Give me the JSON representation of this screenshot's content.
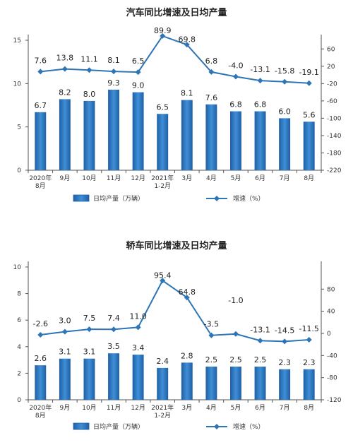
{
  "chart_data": [
    {
      "type": "bar",
      "title": "汽车同比增速及日均产量",
      "categories": [
        "2020年\n8月",
        "9月",
        "10月",
        "11月",
        "12月",
        "2021年\n1-2月",
        "3月",
        "4月",
        "5月",
        "6月",
        "7月",
        "8月"
      ],
      "ylim": [
        0,
        15
      ],
      "y_ticks": [
        0,
        5,
        10,
        15
      ],
      "y2lim": [
        -220,
        80
      ],
      "y2_ticks": [
        60,
        20,
        -20,
        -60,
        -100,
        -140,
        -180,
        -220
      ],
      "series": [
        {
          "name": "日均产量（万辆）",
          "type": "bar",
          "axis": "left",
          "color": "#2e75b6",
          "values": [
            6.7,
            8.2,
            8.0,
            9.3,
            9.0,
            6.5,
            8.1,
            7.6,
            6.8,
            6.8,
            6.0,
            5.6
          ],
          "labels": [
            "6.7",
            "8.2",
            "8.0",
            "9.3",
            "9.0",
            "6.5",
            "8.1",
            "7.6",
            "6.8",
            "6.8",
            "6.0",
            "5.6"
          ]
        },
        {
          "name": "增速（%）",
          "type": "line",
          "axis": "right",
          "color": "#2e75b6",
          "values": [
            7.6,
            13.8,
            11.1,
            8.1,
            6.5,
            89.9,
            69.8,
            6.8,
            -4.0,
            -13.1,
            -15.8,
            -19.1
          ],
          "labels": [
            "7.6",
            "13.8",
            "11.1",
            "8.1",
            "6.5",
            "89.9",
            "69.8",
            "6.8",
            "-4.0",
            "-13.1",
            "-15.8",
            "-19.1"
          ]
        }
      ],
      "legend_position": "bottom",
      "grid": false
    },
    {
      "type": "bar",
      "title": "轿车同比增速及日均产量",
      "categories": [
        "2020年\n8月",
        "9月",
        "10月",
        "11月",
        "12月",
        "2021年\n1-2月",
        "3月",
        "4月",
        "5月",
        "6月",
        "7月",
        "8月"
      ],
      "ylim": [
        0,
        10
      ],
      "y_ticks": [
        0,
        2,
        4,
        6,
        8,
        10
      ],
      "y2lim": [
        -120,
        120
      ],
      "y2_ticks": [
        80,
        40,
        0,
        -40,
        -80,
        -120
      ],
      "series": [
        {
          "name": "日均产量（万辆）",
          "type": "bar",
          "axis": "left",
          "color": "#2e75b6",
          "values": [
            2.6,
            3.1,
            3.1,
            3.5,
            3.4,
            2.4,
            2.8,
            2.5,
            2.5,
            2.5,
            2.3,
            2.3
          ],
          "labels": [
            "2.6",
            "3.1",
            "3.1",
            "3.5",
            "3.4",
            "2.4",
            "2.8",
            "2.5",
            "2.5",
            "2.5",
            "2.3",
            "2.3"
          ]
        },
        {
          "name": "增速（%）",
          "type": "line",
          "axis": "right",
          "color": "#2e75b6",
          "values": [
            -2.6,
            3.0,
            7.5,
            7.4,
            11.0,
            95.4,
            64.8,
            -3.5,
            -1.0,
            -13.1,
            -14.5,
            -11.5
          ],
          "labels": [
            "-2.6",
            "3.0",
            "7.5",
            "7.4",
            "11.0",
            "95.4",
            "64.8",
            "-3.5",
            "-1.0",
            "-13.1",
            "-14.5",
            "-11.5"
          ]
        }
      ],
      "legend_position": "bottom",
      "grid": false
    }
  ]
}
